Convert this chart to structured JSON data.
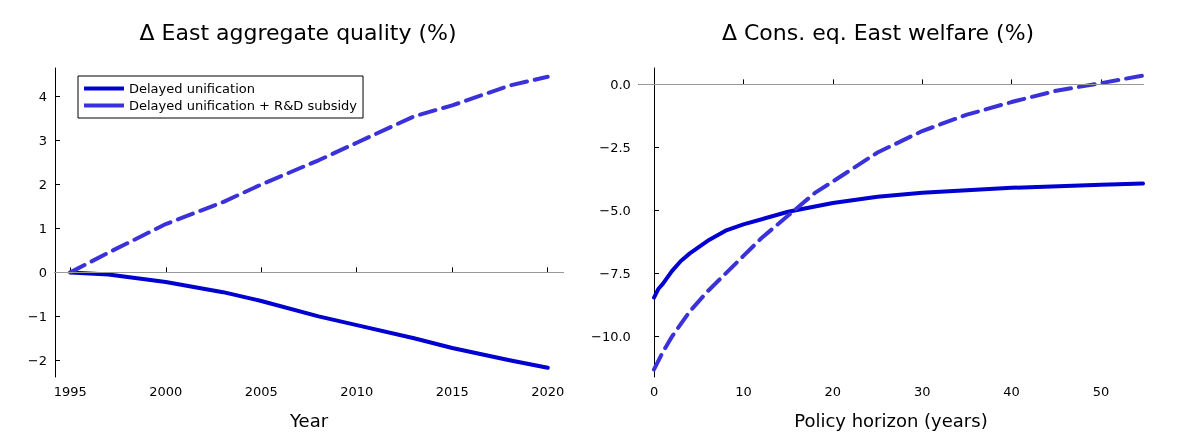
{
  "chart_data": [
    {
      "type": "line",
      "title": "Δ East aggregate quality (%)",
      "xlabel": "Year",
      "xlim": [
        1994.2,
        2020.8
      ],
      "xticks": [
        1995,
        2000,
        2005,
        2010,
        2015,
        2020
      ],
      "ylim": [
        -2.38,
        4.65
      ],
      "yticks": [
        {
          "value": -2,
          "label": "−2"
        },
        {
          "value": -1,
          "label": "−1"
        },
        0,
        1,
        2,
        3,
        4
      ],
      "grid": false,
      "legend": "top left",
      "ref_lines": [
        {
          "axis": "y",
          "value": 0,
          "color": "#999999"
        }
      ],
      "series": [
        {
          "name": "Delayed unification",
          "color": "#0000d0",
          "line_style": "solid",
          "x": [
            1995,
            1997,
            2000,
            2003,
            2005,
            2008,
            2010,
            2013,
            2015,
            2018,
            2020
          ],
          "values": [
            0,
            -0.05,
            -0.22,
            -0.45,
            -0.65,
            -1.0,
            -1.2,
            -1.5,
            -1.72,
            -2.0,
            -2.17
          ]
        },
        {
          "name": "Delayed unification + R&D subsidy",
          "color": "#3a32d8",
          "line_style": "dashed",
          "x": [
            1995,
            1997,
            2000,
            2003,
            2005,
            2008,
            2010,
            2013,
            2015,
            2018,
            2020
          ],
          "values": [
            0,
            0.45,
            1.1,
            1.6,
            2.0,
            2.55,
            2.95,
            3.55,
            3.8,
            4.25,
            4.45
          ]
        }
      ]
    },
    {
      "type": "line",
      "title": "Δ Cons. eq. East welfare (%)",
      "xlabel": "Policy horizon (years)",
      "xlim": [
        -1.7,
        54.7
      ],
      "xticks": [
        0,
        10,
        20,
        30,
        40,
        50
      ],
      "ylim": [
        -11.6,
        0.65
      ],
      "yticks": [
        {
          "value": -10,
          "label": "−10.0"
        },
        {
          "value": -7.5,
          "label": "−7.5"
        },
        {
          "value": -5,
          "label": "−5.0"
        },
        {
          "value": -2.5,
          "label": "−2.5"
        },
        {
          "value": 0,
          "label": "0.0"
        }
      ],
      "grid": false,
      "legend": false,
      "ref_lines": [
        {
          "axis": "y",
          "value": 0,
          "color": "#999999"
        }
      ],
      "series": [
        {
          "color": "#0000d0",
          "line_style": "solid",
          "x": [
            0,
            0.5,
            1,
            2,
            3,
            4,
            6,
            8,
            10,
            15,
            20,
            25,
            30,
            40,
            50,
            54.7
          ],
          "values": [
            -8.45,
            -8.1,
            -7.9,
            -7.4,
            -7.0,
            -6.7,
            -6.2,
            -5.8,
            -5.55,
            -5.05,
            -4.7,
            -4.45,
            -4.3,
            -4.1,
            -3.98,
            -3.93
          ]
        },
        {
          "color": "#3a32d8",
          "line_style": "dashed",
          "x": [
            0,
            1,
            2,
            4,
            6,
            8,
            10,
            12,
            15,
            18,
            20,
            25,
            30,
            35,
            40,
            45,
            50,
            54.7
          ],
          "values": [
            -11.3,
            -10.6,
            -10.0,
            -9.0,
            -8.2,
            -7.5,
            -6.8,
            -6.1,
            -5.2,
            -4.3,
            -3.85,
            -2.7,
            -1.85,
            -1.2,
            -0.7,
            -0.25,
            0.05,
            0.35
          ]
        }
      ]
    }
  ]
}
